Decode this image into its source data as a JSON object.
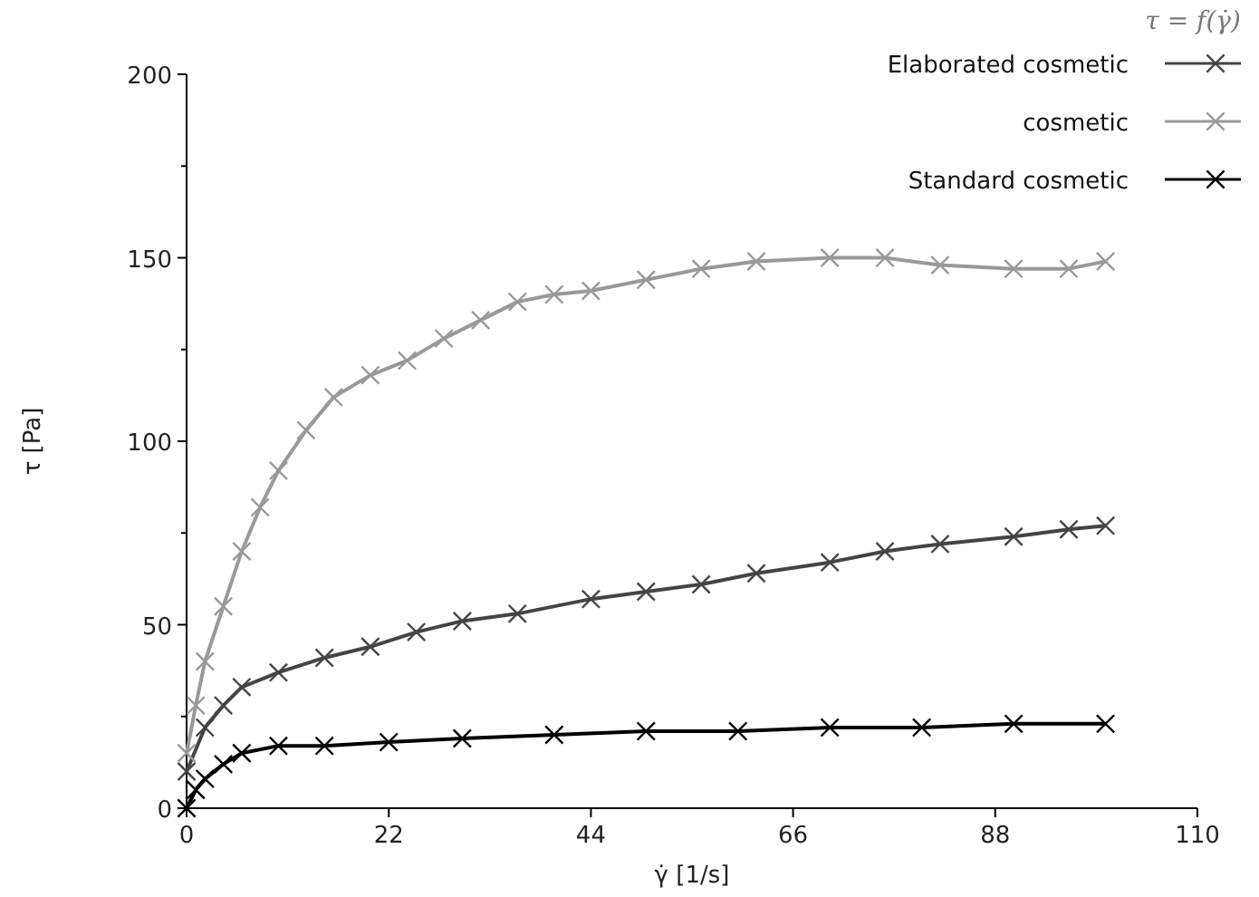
{
  "chart_data": {
    "type": "line",
    "xlabel": "γ̇ [1/s]",
    "ylabel": "τ [Pa]",
    "legend_title": "τ = f(γ̇)",
    "legend": "top right",
    "marker": "cross",
    "line_style": "solid",
    "grid": false,
    "xlim": [
      0,
      110
    ],
    "xticks": [
      0,
      22,
      44,
      66,
      88,
      110
    ],
    "ylim": [
      0,
      200
    ],
    "yticks": [
      0,
      {
        "value": 25,
        "label": null
      },
      50,
      {
        "value": 75,
        "label": null
      },
      100,
      {
        "value": 125,
        "label": null
      },
      150,
      {
        "value": 175,
        "label": null
      },
      200
    ],
    "series": [
      {
        "name": "Elaborated cosmetic",
        "color": "#444444",
        "x": [
          0,
          2,
          4,
          6,
          10,
          15,
          20,
          25,
          30,
          36,
          44,
          50,
          56,
          62,
          70,
          76,
          82,
          90,
          96,
          100
        ],
        "values": [
          10,
          22,
          28,
          33,
          37,
          41,
          44,
          48,
          51,
          53,
          57,
          59,
          61,
          64,
          67,
          70,
          72,
          74,
          76,
          77
        ]
      },
      {
        "name": "cosmetic",
        "color": "#999999",
        "x": [
          0,
          1,
          2,
          4,
          6,
          8,
          10,
          13,
          16,
          20,
          24,
          28,
          32,
          36,
          40,
          44,
          50,
          56,
          62,
          70,
          76,
          82,
          90,
          96,
          100
        ],
        "values": [
          15,
          28,
          40,
          55,
          70,
          82,
          92,
          103,
          112,
          118,
          122,
          128,
          133,
          138,
          140,
          141,
          144,
          147,
          149,
          150,
          150,
          148,
          147,
          147,
          149
        ]
      },
      {
        "name": "Standard cosmetic",
        "color": "#000000",
        "x": [
          0,
          1,
          2,
          4,
          6,
          10,
          15,
          22,
          30,
          40,
          50,
          60,
          70,
          80,
          90,
          100
        ],
        "values": [
          0,
          5,
          8,
          12,
          15,
          17,
          17,
          18,
          19,
          20,
          21,
          21,
          22,
          22,
          23,
          23
        ]
      }
    ]
  }
}
